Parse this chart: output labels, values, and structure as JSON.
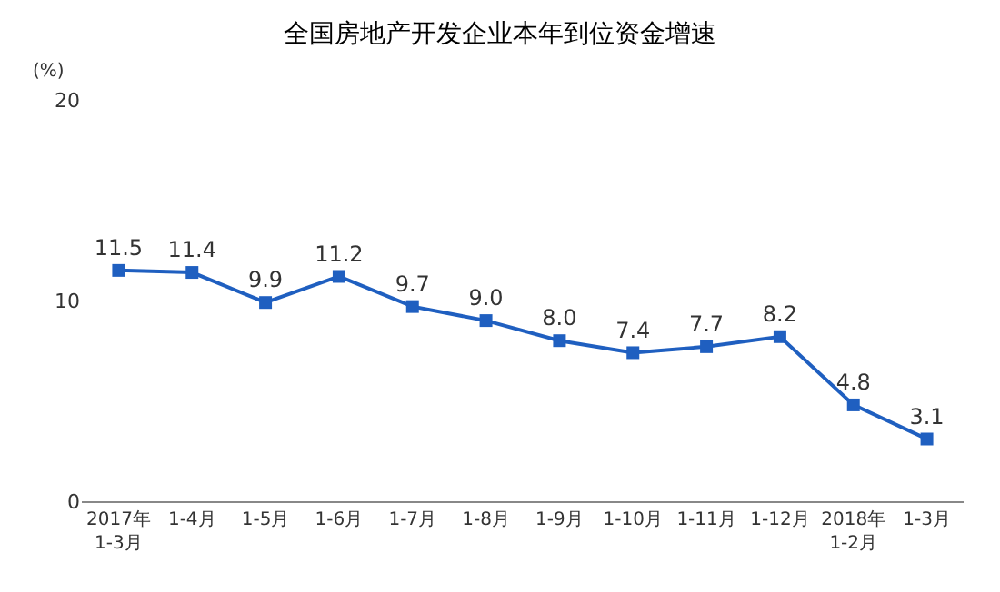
{
  "chart_data": {
    "type": "line",
    "title": "全国房地产开发企业本年到位资金增速",
    "ylabel": "(%)",
    "categories": [
      "2017年\n1-3月",
      "1-4月",
      "1-5月",
      "1-6月",
      "1-7月",
      "1-8月",
      "1-9月",
      "1-10月",
      "1-11月",
      "1-12月",
      "2018年\n1-2月",
      "1-3月"
    ],
    "series": [
      {
        "color": "#1f5fc0",
        "values": [
          11.5,
          11.4,
          9.9,
          11.2,
          9.7,
          9.0,
          8.0,
          7.4,
          7.7,
          8.2,
          4.8,
          3.1
        ]
      }
    ],
    "value_labels": [
      "11.5",
      "11.4",
      "9.9",
      "11.2",
      "9.7",
      "9.0",
      "8.0",
      "7.4",
      "7.7",
      "8.2",
      "4.8",
      "3.1"
    ],
    "ylim": [
      0,
      20
    ],
    "yticks": [
      0,
      10,
      20
    ],
    "marker": "square",
    "line_style": "solid",
    "grid": false,
    "legend": false
  }
}
